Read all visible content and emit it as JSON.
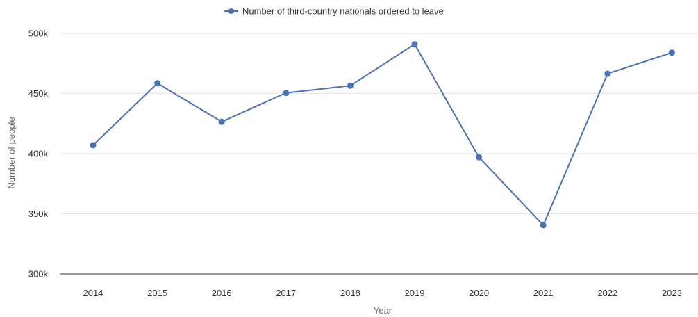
{
  "chart_data": {
    "type": "line",
    "title": "",
    "xlabel": "Year",
    "ylabel": "Number of people",
    "categories": [
      "2014",
      "2015",
      "2016",
      "2017",
      "2018",
      "2019",
      "2020",
      "2021",
      "2022",
      "2023"
    ],
    "series": [
      {
        "name": "Number of third-country nationals ordered to leave",
        "values": [
          407000,
          458500,
          426500,
          450500,
          456500,
          491000,
          397000,
          340500,
          466500,
          484000
        ],
        "color": "#4a72b8"
      }
    ],
    "ylim": [
      300000,
      500000
    ],
    "yticks": [
      300000,
      350000,
      400000,
      450000,
      500000
    ],
    "ytick_labels": [
      "300k",
      "350k",
      "400k",
      "450k",
      "500k"
    ],
    "grid": true,
    "legend_position": "top-center"
  }
}
